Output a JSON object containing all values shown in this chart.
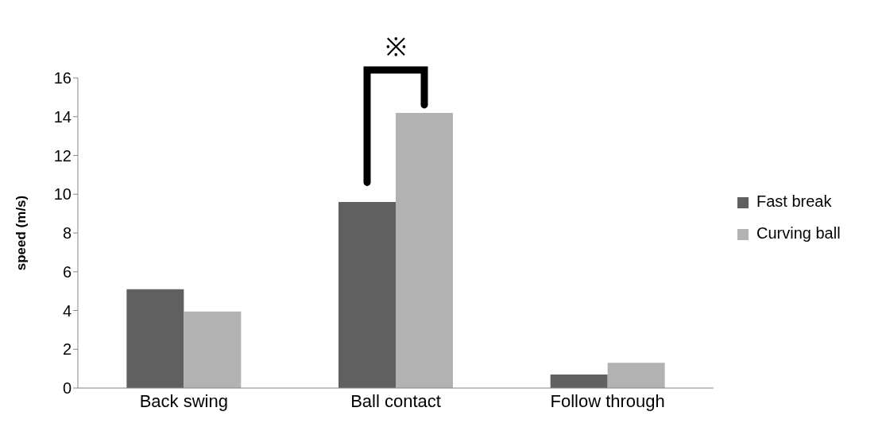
{
  "chart_data": {
    "type": "bar",
    "ylabel": "speed (m/s)",
    "categories": [
      "Back swing",
      "Ball contact",
      "Follow through"
    ],
    "series": [
      {
        "name": "Fast break",
        "color": "#606060",
        "values": [
          5.1,
          9.6,
          0.7
        ]
      },
      {
        "name": "Curving ball",
        "color": "#b2b2b2",
        "values": [
          3.95,
          14.2,
          1.3
        ]
      }
    ],
    "ylim": [
      0,
      16
    ],
    "yticks": [
      0,
      2,
      4,
      6,
      8,
      10,
      12,
      14,
      16
    ],
    "grid": false,
    "legend": "right",
    "annotations": [
      "※"
    ]
  }
}
